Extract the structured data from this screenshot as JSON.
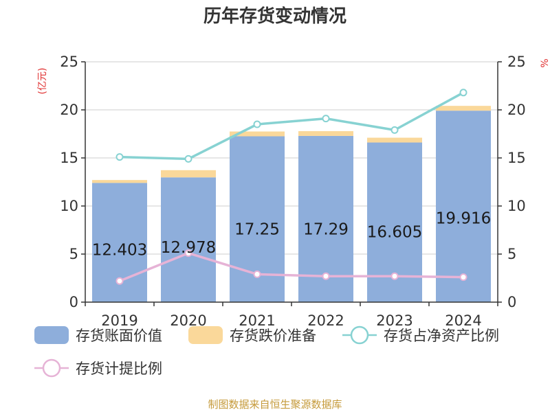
{
  "chart_data": {
    "type": "bar",
    "title": "历年存货变动情况",
    "categories": [
      "2019",
      "2020",
      "2021",
      "2022",
      "2023",
      "2024"
    ],
    "y_left": {
      "unit": "(亿元)",
      "ylim": [
        0,
        25
      ],
      "ticks": [
        "0",
        "5",
        "10",
        "15",
        "20",
        "25"
      ]
    },
    "y_right": {
      "unit": "%",
      "ylim": [
        0,
        25
      ],
      "ticks": [
        "0",
        "5",
        "10",
        "15",
        "20",
        "25"
      ]
    },
    "series": [
      {
        "name": "存货账面价值",
        "kind": "bar",
        "stack": "s1",
        "axis": "left",
        "color": "#8eaedb",
        "values": [
          12.403,
          12.978,
          17.25,
          17.29,
          16.605,
          19.916
        ],
        "labels": [
          "12.403",
          "12.978",
          "17.25",
          "17.29",
          "16.605",
          "19.916"
        ]
      },
      {
        "name": "存货跌价准备",
        "kind": "bar",
        "stack": "s1",
        "axis": "left",
        "color": "#fad89a",
        "values": [
          0.3,
          0.75,
          0.5,
          0.5,
          0.5,
          0.5
        ]
      },
      {
        "name": "存货占净资产比例",
        "kind": "line",
        "axis": "right",
        "color": "#87d2d2",
        "values": [
          15.1,
          14.9,
          18.5,
          19.1,
          17.9,
          21.8
        ]
      },
      {
        "name": "存货计提比例",
        "kind": "line",
        "axis": "right",
        "color": "#e6b3d6",
        "values": [
          2.2,
          5.1,
          2.9,
          2.7,
          2.7,
          2.6
        ]
      }
    ],
    "grid": true,
    "legend_position": "bottom"
  },
  "source": "制图数据来自恒生聚源数据库"
}
